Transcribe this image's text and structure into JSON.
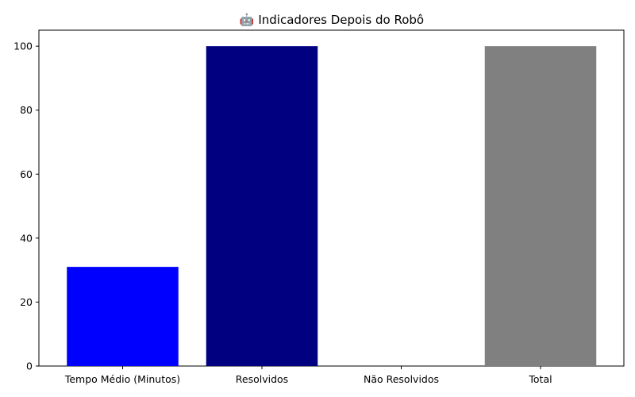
{
  "chart_data": {
    "type": "bar",
    "title": "🤖 Indicadores Depois do Robô",
    "categories": [
      "Tempo Médio (Minutos)",
      "Resolvidos",
      "Não Resolvidos",
      "Total"
    ],
    "values": [
      31,
      100,
      0,
      100
    ],
    "colors": [
      "#0000ff",
      "#000080",
      "#ffffff",
      "#808080"
    ],
    "xlabel": "",
    "ylabel": "",
    "ylim": [
      0,
      105
    ],
    "yticks": [
      0,
      20,
      40,
      60,
      80,
      100
    ],
    "grid": false,
    "legend": "none"
  }
}
